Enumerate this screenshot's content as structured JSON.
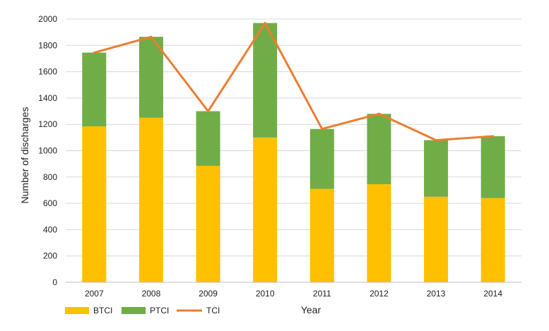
{
  "chart_data": {
    "type": "bar",
    "stacked": true,
    "title": "",
    "xlabel": "Year",
    "ylabel": "Number of discharges",
    "categories": [
      "2007",
      "2008",
      "2009",
      "2010",
      "2011",
      "2012",
      "2013",
      "2014"
    ],
    "ylim": [
      0,
      2000
    ],
    "yticks": [
      0,
      200,
      400,
      600,
      800,
      1000,
      1200,
      1400,
      1600,
      1800,
      2000
    ],
    "grid": true,
    "legend_position": "bottom-left",
    "series": [
      {
        "name": "BTCI",
        "type": "bar",
        "color": "#ffc000",
        "values": [
          1185,
          1250,
          885,
          1100,
          710,
          745,
          650,
          640
        ]
      },
      {
        "name": "PTCI",
        "type": "bar",
        "color": "#70ad47",
        "values": [
          560,
          615,
          415,
          870,
          455,
          535,
          430,
          470
        ]
      },
      {
        "name": "TCI",
        "type": "line",
        "color": "#ed7d31",
        "values": [
          1745,
          1865,
          1300,
          1970,
          1165,
          1280,
          1080,
          1110
        ]
      }
    ]
  }
}
